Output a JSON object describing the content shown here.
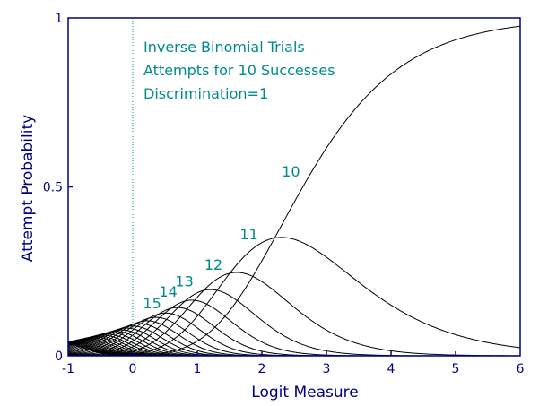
{
  "chart_data": {
    "type": "line",
    "title": "",
    "xlabel": "Logit Measure",
    "ylabel": "Attempt  Probability",
    "xlim": [
      -1,
      6
    ],
    "ylim": [
      0,
      1
    ],
    "x_ticks": [
      "-1",
      "0",
      "1",
      "2",
      "3",
      "4",
      "5",
      "6"
    ],
    "y_ticks": [
      "0",
      "0.5",
      "1"
    ],
    "annotation_lines": [
      "Inverse Binomial Trials",
      "Attempts for 10 Successes",
      "Discrimination=1"
    ],
    "reference_line_x": 0,
    "successes": 10,
    "discrimination": 1,
    "curve_trials": [
      10,
      11,
      12,
      13,
      14,
      15,
      16,
      17,
      18,
      19,
      20,
      21,
      22,
      23,
      24,
      25,
      26,
      27,
      28,
      29,
      30,
      31,
      32,
      33,
      34,
      35,
      36,
      37,
      38,
      39,
      40
    ],
    "curve_labels": [
      {
        "text": "10",
        "x": 2.45,
        "y": 0.53
      },
      {
        "text": "11",
        "x": 1.8,
        "y": 0.345
      },
      {
        "text": "12",
        "x": 1.25,
        "y": 0.255
      },
      {
        "text": "13",
        "x": 0.8,
        "y": 0.205
      },
      {
        "text": "14",
        "x": 0.55,
        "y": 0.175
      },
      {
        "text": "15",
        "x": 0.3,
        "y": 0.14
      }
    ],
    "colors": {
      "axis": "#000080",
      "curve": "#000000",
      "annotation": "#008b8b",
      "reference": "#008b8b"
    }
  }
}
